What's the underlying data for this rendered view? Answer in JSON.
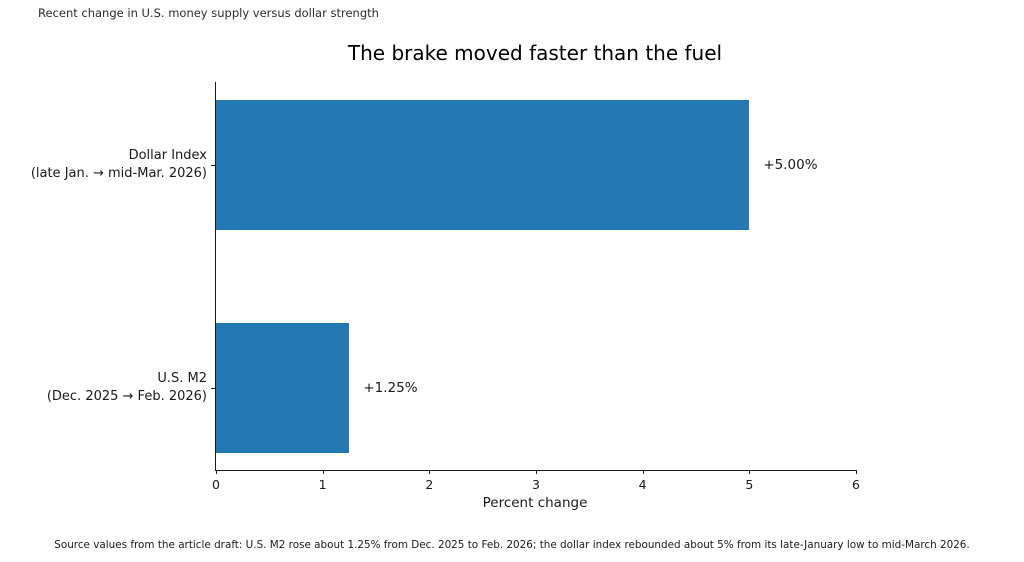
{
  "figure": {
    "suptitle": "Recent change in U.S. money supply versus dollar strength",
    "source_note": "Source values from the article draft: U.S. M2 rose about 1.25% from Dec. 2025 to Feb. 2026; the dollar index rebounded about 5% from its late-January low to mid-March 2026."
  },
  "chart_data": {
    "type": "bar",
    "orientation": "horizontal",
    "title": "The brake moved faster than the fuel",
    "xlabel": "Percent change",
    "xlim": [
      0,
      6
    ],
    "xticks": [
      0,
      1,
      2,
      3,
      4,
      5,
      6
    ],
    "grid": false,
    "legend": false,
    "bar_color": "#2478b4",
    "categories": [
      "Dollar Index (late Jan. → mid-Mar. 2026)",
      "U.S. M2 (Dec. 2025 → Feb. 2026)"
    ],
    "values": [
      5.0,
      1.25
    ],
    "bars": [
      {
        "id": "dollar-index",
        "label_lines": [
          "Dollar Index",
          "(late Jan. → mid-Mar. 2026)"
        ],
        "value": 5.0,
        "value_label": "+5.00%",
        "center_frac": 0.213
      },
      {
        "id": "us-m2",
        "label_lines": [
          "U.S. M2",
          "(Dec. 2025 → Feb. 2026)"
        ],
        "value": 1.25,
        "value_label": "+1.25%",
        "center_frac": 0.789
      }
    ]
  }
}
